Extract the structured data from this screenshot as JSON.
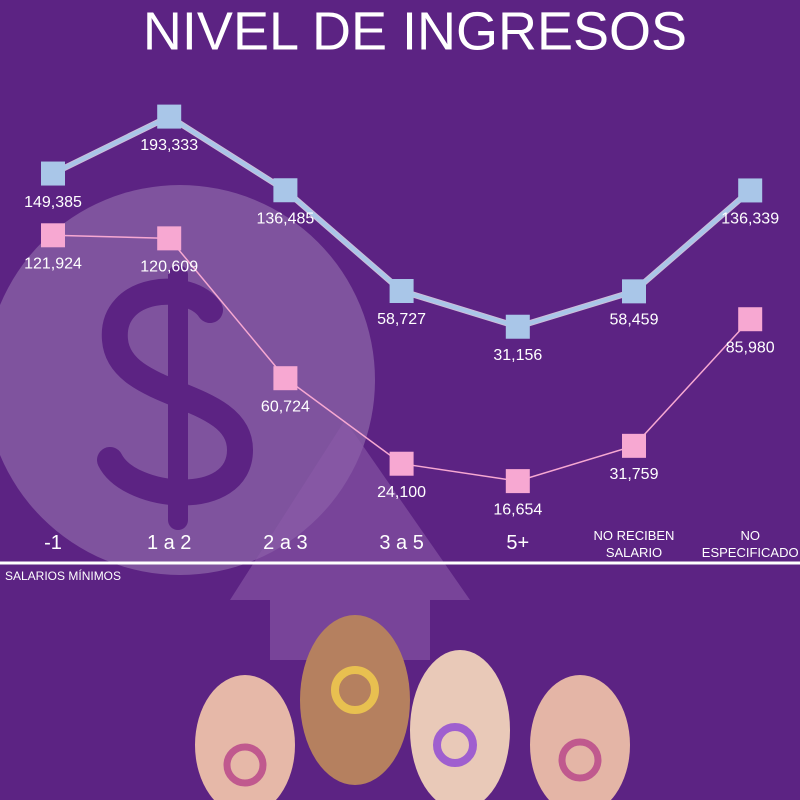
{
  "chart_data": {
    "type": "line",
    "title": "NIVEL DE INGRESOS",
    "x_label": "SALARIOS MÍNIMOS",
    "categories": [
      "-1",
      "1 a 2",
      "2 a 3",
      "3 a 5",
      "5+",
      "NO RECIBEN SALARIO",
      "NO ESPECIFICADO"
    ],
    "series": [
      {
        "color": "#a9c6e8",
        "values": [
          149385,
          193333,
          136485,
          58727,
          31156,
          58459,
          136339
        ],
        "value_labels": [
          "149,385",
          "193,333",
          "136,485",
          "58,727",
          "31,156",
          "58,459",
          "136,339"
        ]
      },
      {
        "color": "#f7a8d2",
        "axis": "y2",
        "values": [
          121924,
          120609,
          60724,
          24100,
          16654,
          31759,
          85980
        ],
        "value_labels": [
          "121,924",
          "120,609",
          "60,724",
          "24,100",
          "16,654",
          "31,759",
          "85,980"
        ]
      }
    ],
    "ylim": [
      -118000,
      210000
    ],
    "y2lim": [
      0,
      182000
    ]
  }
}
